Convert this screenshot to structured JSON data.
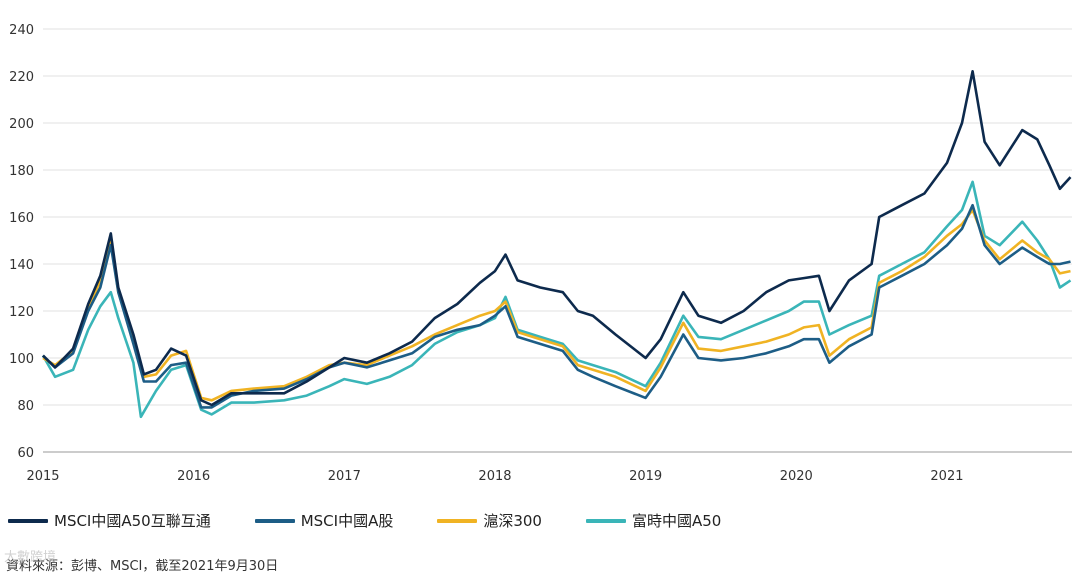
{
  "chart_data": {
    "type": "line",
    "title": "",
    "xlabel": "",
    "ylabel": "",
    "ylim": [
      60,
      240
    ],
    "xlim": [
      2015,
      2021.75
    ],
    "y_ticks": [
      60,
      80,
      100,
      120,
      140,
      160,
      180,
      200,
      220,
      240
    ],
    "x_ticks": [
      "2015",
      "2016",
      "2017",
      "2018",
      "2019",
      "2020",
      "2021"
    ],
    "grid": true,
    "legend_position": "bottom",
    "series": [
      {
        "name": "MSCI中國A50互聯互通",
        "color": "#0d2a4d",
        "points": [
          [
            2015.0,
            101
          ],
          [
            2015.08,
            96
          ],
          [
            2015.2,
            104
          ],
          [
            2015.3,
            123
          ],
          [
            2015.38,
            135
          ],
          [
            2015.45,
            153
          ],
          [
            2015.5,
            130
          ],
          [
            2015.6,
            110
          ],
          [
            2015.67,
            93
          ],
          [
            2015.75,
            95
          ],
          [
            2015.85,
            104
          ],
          [
            2015.95,
            101
          ],
          [
            2016.05,
            82
          ],
          [
            2016.12,
            80
          ],
          [
            2016.25,
            85
          ],
          [
            2016.4,
            85
          ],
          [
            2016.6,
            85
          ],
          [
            2016.75,
            90
          ],
          [
            2016.9,
            96
          ],
          [
            2017.0,
            100
          ],
          [
            2017.15,
            98
          ],
          [
            2017.3,
            102
          ],
          [
            2017.45,
            107
          ],
          [
            2017.6,
            117
          ],
          [
            2017.75,
            123
          ],
          [
            2017.9,
            132
          ],
          [
            2018.0,
            137
          ],
          [
            2018.07,
            144
          ],
          [
            2018.15,
            133
          ],
          [
            2018.3,
            130
          ],
          [
            2018.45,
            128
          ],
          [
            2018.55,
            120
          ],
          [
            2018.65,
            118
          ],
          [
            2018.8,
            110
          ],
          [
            2019.0,
            100
          ],
          [
            2019.1,
            108
          ],
          [
            2019.25,
            128
          ],
          [
            2019.35,
            118
          ],
          [
            2019.5,
            115
          ],
          [
            2019.65,
            120
          ],
          [
            2019.8,
            128
          ],
          [
            2019.95,
            133
          ],
          [
            2020.05,
            134
          ],
          [
            2020.15,
            135
          ],
          [
            2020.22,
            120
          ],
          [
            2020.35,
            133
          ],
          [
            2020.5,
            140
          ],
          [
            2020.55,
            160
          ],
          [
            2020.7,
            165
          ],
          [
            2020.85,
            170
          ],
          [
            2021.0,
            183
          ],
          [
            2021.1,
            200
          ],
          [
            2021.17,
            222
          ],
          [
            2021.25,
            192
          ],
          [
            2021.35,
            182
          ],
          [
            2021.5,
            197
          ],
          [
            2021.6,
            193
          ],
          [
            2021.68,
            182
          ],
          [
            2021.75,
            172
          ],
          [
            2021.82,
            177
          ]
        ]
      },
      {
        "name": "MSCI中國A股",
        "color": "#1d5d86",
        "points": [
          [
            2015.0,
            101
          ],
          [
            2015.08,
            96
          ],
          [
            2015.2,
            102
          ],
          [
            2015.3,
            120
          ],
          [
            2015.38,
            130
          ],
          [
            2015.45,
            148
          ],
          [
            2015.5,
            128
          ],
          [
            2015.6,
            106
          ],
          [
            2015.67,
            90
          ],
          [
            2015.75,
            90
          ],
          [
            2015.85,
            97
          ],
          [
            2015.95,
            98
          ],
          [
            2016.05,
            79
          ],
          [
            2016.12,
            79
          ],
          [
            2016.25,
            84
          ],
          [
            2016.4,
            86
          ],
          [
            2016.6,
            87
          ],
          [
            2016.75,
            91
          ],
          [
            2016.9,
            96
          ],
          [
            2017.0,
            98
          ],
          [
            2017.15,
            96
          ],
          [
            2017.3,
            99
          ],
          [
            2017.45,
            102
          ],
          [
            2017.6,
            109
          ],
          [
            2017.75,
            112
          ],
          [
            2017.9,
            114
          ],
          [
            2018.0,
            118
          ],
          [
            2018.07,
            122
          ],
          [
            2018.15,
            109
          ],
          [
            2018.3,
            106
          ],
          [
            2018.45,
            103
          ],
          [
            2018.55,
            95
          ],
          [
            2018.65,
            92
          ],
          [
            2018.8,
            88
          ],
          [
            2019.0,
            83
          ],
          [
            2019.1,
            92
          ],
          [
            2019.25,
            110
          ],
          [
            2019.35,
            100
          ],
          [
            2019.5,
            99
          ],
          [
            2019.65,
            100
          ],
          [
            2019.8,
            102
          ],
          [
            2019.95,
            105
          ],
          [
            2020.05,
            108
          ],
          [
            2020.15,
            108
          ],
          [
            2020.22,
            98
          ],
          [
            2020.35,
            105
          ],
          [
            2020.5,
            110
          ],
          [
            2020.55,
            130
          ],
          [
            2020.7,
            135
          ],
          [
            2020.85,
            140
          ],
          [
            2021.0,
            148
          ],
          [
            2021.1,
            155
          ],
          [
            2021.17,
            165
          ],
          [
            2021.25,
            148
          ],
          [
            2021.35,
            140
          ],
          [
            2021.5,
            147
          ],
          [
            2021.6,
            143
          ],
          [
            2021.68,
            140
          ],
          [
            2021.75,
            140
          ],
          [
            2021.82,
            141
          ]
        ]
      },
      {
        "name": "滬深300",
        "color": "#f0b323",
        "points": [
          [
            2015.0,
            100
          ],
          [
            2015.08,
            97
          ],
          [
            2015.2,
            103
          ],
          [
            2015.3,
            121
          ],
          [
            2015.38,
            133
          ],
          [
            2015.45,
            150
          ],
          [
            2015.5,
            128
          ],
          [
            2015.6,
            108
          ],
          [
            2015.67,
            92
          ],
          [
            2015.75,
            93
          ],
          [
            2015.85,
            101
          ],
          [
            2015.95,
            103
          ],
          [
            2016.05,
            83
          ],
          [
            2016.12,
            82
          ],
          [
            2016.25,
            86
          ],
          [
            2016.4,
            87
          ],
          [
            2016.6,
            88
          ],
          [
            2016.75,
            92
          ],
          [
            2016.9,
            97
          ],
          [
            2017.0,
            98
          ],
          [
            2017.15,
            97
          ],
          [
            2017.3,
            101
          ],
          [
            2017.45,
            105
          ],
          [
            2017.6,
            110
          ],
          [
            2017.75,
            114
          ],
          [
            2017.9,
            118
          ],
          [
            2018.0,
            120
          ],
          [
            2018.07,
            124
          ],
          [
            2018.15,
            111
          ],
          [
            2018.3,
            108
          ],
          [
            2018.45,
            105
          ],
          [
            2018.55,
            97
          ],
          [
            2018.65,
            95
          ],
          [
            2018.8,
            92
          ],
          [
            2019.0,
            86
          ],
          [
            2019.1,
            96
          ],
          [
            2019.25,
            115
          ],
          [
            2019.35,
            104
          ],
          [
            2019.5,
            103
          ],
          [
            2019.65,
            105
          ],
          [
            2019.8,
            107
          ],
          [
            2019.95,
            110
          ],
          [
            2020.05,
            113
          ],
          [
            2020.15,
            114
          ],
          [
            2020.22,
            101
          ],
          [
            2020.35,
            108
          ],
          [
            2020.5,
            113
          ],
          [
            2020.55,
            132
          ],
          [
            2020.7,
            137
          ],
          [
            2020.85,
            143
          ],
          [
            2021.0,
            152
          ],
          [
            2021.1,
            157
          ],
          [
            2021.17,
            163
          ],
          [
            2021.25,
            150
          ],
          [
            2021.35,
            142
          ],
          [
            2021.5,
            150
          ],
          [
            2021.6,
            145
          ],
          [
            2021.68,
            142
          ],
          [
            2021.75,
            136
          ],
          [
            2021.82,
            137
          ]
        ]
      },
      {
        "name": "富時中國A50",
        "color": "#3ab5b8",
        "points": [
          [
            2015.0,
            101
          ],
          [
            2015.08,
            92
          ],
          [
            2015.2,
            95
          ],
          [
            2015.3,
            112
          ],
          [
            2015.38,
            122
          ],
          [
            2015.45,
            128
          ],
          [
            2015.5,
            117
          ],
          [
            2015.6,
            98
          ],
          [
            2015.65,
            75
          ],
          [
            2015.75,
            86
          ],
          [
            2015.85,
            95
          ],
          [
            2015.95,
            97
          ],
          [
            2016.05,
            78
          ],
          [
            2016.12,
            76
          ],
          [
            2016.25,
            81
          ],
          [
            2016.4,
            81
          ],
          [
            2016.6,
            82
          ],
          [
            2016.75,
            84
          ],
          [
            2016.9,
            88
          ],
          [
            2017.0,
            91
          ],
          [
            2017.15,
            89
          ],
          [
            2017.3,
            92
          ],
          [
            2017.45,
            97
          ],
          [
            2017.6,
            106
          ],
          [
            2017.75,
            111
          ],
          [
            2017.9,
            114
          ],
          [
            2018.0,
            117
          ],
          [
            2018.07,
            126
          ],
          [
            2018.15,
            112
          ],
          [
            2018.3,
            109
          ],
          [
            2018.45,
            106
          ],
          [
            2018.55,
            99
          ],
          [
            2018.65,
            97
          ],
          [
            2018.8,
            94
          ],
          [
            2019.0,
            88
          ],
          [
            2019.1,
            98
          ],
          [
            2019.25,
            118
          ],
          [
            2019.35,
            109
          ],
          [
            2019.5,
            108
          ],
          [
            2019.65,
            112
          ],
          [
            2019.8,
            116
          ],
          [
            2019.95,
            120
          ],
          [
            2020.05,
            124
          ],
          [
            2020.15,
            124
          ],
          [
            2020.22,
            110
          ],
          [
            2020.35,
            114
          ],
          [
            2020.5,
            118
          ],
          [
            2020.55,
            135
          ],
          [
            2020.7,
            140
          ],
          [
            2020.85,
            145
          ],
          [
            2021.0,
            156
          ],
          [
            2021.1,
            163
          ],
          [
            2021.17,
            175
          ],
          [
            2021.25,
            152
          ],
          [
            2021.35,
            148
          ],
          [
            2021.5,
            158
          ],
          [
            2021.6,
            150
          ],
          [
            2021.68,
            142
          ],
          [
            2021.75,
            130
          ],
          [
            2021.82,
            133
          ]
        ]
      }
    ]
  },
  "footer": {
    "source": "資料來源：彭博、MSCI，截至2021年9月30日",
    "watermark": "大數跨境"
  }
}
